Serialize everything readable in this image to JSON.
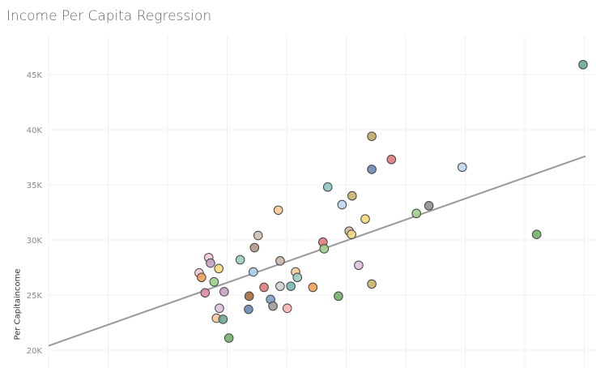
{
  "chart_data": {
    "type": "scatter",
    "title": "Income Per Capita Regression",
    "ylabel": "Per Capitaincome",
    "xlabel": "",
    "ylim": [
      19500,
      47800
    ],
    "xlim": [
      0,
      9
    ],
    "grid": true,
    "yticks": [
      {
        "v": 20000,
        "label": "20K"
      },
      {
        "v": 25000,
        "label": "25K"
      },
      {
        "v": 30000,
        "label": "30K"
      },
      {
        "v": 35000,
        "label": "35K"
      },
      {
        "v": 40000,
        "label": "40K"
      },
      {
        "v": 45000,
        "label": "45K"
      }
    ],
    "trendline": {
      "x": [
        0,
        9.02
      ],
      "y": [
        20400,
        37600
      ],
      "color": "#999999"
    },
    "points": [
      {
        "x": 8.98,
        "y": 45900,
        "c": "#6ba99a"
      },
      {
        "x": 5.43,
        "y": 39400,
        "c": "#c2a868"
      },
      {
        "x": 5.76,
        "y": 37300,
        "c": "#e07b7b"
      },
      {
        "x": 5.43,
        "y": 36400,
        "c": "#6788b5"
      },
      {
        "x": 6.95,
        "y": 36600,
        "c": "#bcd6ee"
      },
      {
        "x": 4.69,
        "y": 34800,
        "c": "#8cc7c1"
      },
      {
        "x": 3.86,
        "y": 32700,
        "c": "#f7c89a"
      },
      {
        "x": 5.1,
        "y": 34000,
        "c": "#c9b46a"
      },
      {
        "x": 4.93,
        "y": 33200,
        "c": "#bcd6ee"
      },
      {
        "x": 6.39,
        "y": 33100,
        "c": "#8f8f8f"
      },
      {
        "x": 6.18,
        "y": 32400,
        "c": "#9bd18a"
      },
      {
        "x": 5.32,
        "y": 31900,
        "c": "#f5d77e"
      },
      {
        "x": 5.05,
        "y": 30800,
        "c": "#d2b8a8"
      },
      {
        "x": 5.09,
        "y": 30500,
        "c": "#f5d77e"
      },
      {
        "x": 3.52,
        "y": 30400,
        "c": "#cdbfb3"
      },
      {
        "x": 8.2,
        "y": 30500,
        "c": "#73b06a"
      },
      {
        "x": 4.61,
        "y": 29800,
        "c": "#e07b7b"
      },
      {
        "x": 4.63,
        "y": 29200,
        "c": "#9bd18a"
      },
      {
        "x": 3.46,
        "y": 29300,
        "c": "#b49787"
      },
      {
        "x": 3.22,
        "y": 28200,
        "c": "#9ccbc3"
      },
      {
        "x": 2.69,
        "y": 28400,
        "c": "#f2c9dc"
      },
      {
        "x": 2.72,
        "y": 27900,
        "c": "#c7a2c2"
      },
      {
        "x": 3.89,
        "y": 28100,
        "c": "#c9b7a9"
      },
      {
        "x": 2.86,
        "y": 27400,
        "c": "#f5d77e"
      },
      {
        "x": 5.21,
        "y": 27700,
        "c": "#dcc2dc"
      },
      {
        "x": 2.53,
        "y": 27000,
        "c": "#f2c9dc"
      },
      {
        "x": 2.57,
        "y": 26600,
        "c": "#f2a05a"
      },
      {
        "x": 4.15,
        "y": 27100,
        "c": "#f7c89a"
      },
      {
        "x": 4.18,
        "y": 26600,
        "c": "#9ccbc3"
      },
      {
        "x": 3.44,
        "y": 27100,
        "c": "#a9cde8"
      },
      {
        "x": 2.78,
        "y": 26200,
        "c": "#9bd18a"
      },
      {
        "x": 5.43,
        "y": 26000,
        "c": "#c9b46a"
      },
      {
        "x": 2.63,
        "y": 25200,
        "c": "#d98aa8"
      },
      {
        "x": 2.95,
        "y": 25300,
        "c": "#c7a2c2"
      },
      {
        "x": 3.62,
        "y": 25700,
        "c": "#e07b7b"
      },
      {
        "x": 3.89,
        "y": 25800,
        "c": "#d4cfcc"
      },
      {
        "x": 4.07,
        "y": 25800,
        "c": "#76b7b2"
      },
      {
        "x": 4.44,
        "y": 25700,
        "c": "#f2a05a"
      },
      {
        "x": 3.37,
        "y": 24900,
        "c": "#a66f3f"
      },
      {
        "x": 4.87,
        "y": 24900,
        "c": "#73b06a"
      },
      {
        "x": 3.73,
        "y": 24600,
        "c": "#7e9fc8"
      },
      {
        "x": 3.77,
        "y": 24000,
        "c": "#9e9a96"
      },
      {
        "x": 4.01,
        "y": 23800,
        "c": "#fab3b3"
      },
      {
        "x": 2.87,
        "y": 23800,
        "c": "#dcc2dc"
      },
      {
        "x": 3.36,
        "y": 23700,
        "c": "#6788b5"
      },
      {
        "x": 2.82,
        "y": 22900,
        "c": "#f7c89a"
      },
      {
        "x": 2.93,
        "y": 22800,
        "c": "#6ba99a"
      },
      {
        "x": 3.03,
        "y": 21100,
        "c": "#73b06a"
      }
    ]
  }
}
